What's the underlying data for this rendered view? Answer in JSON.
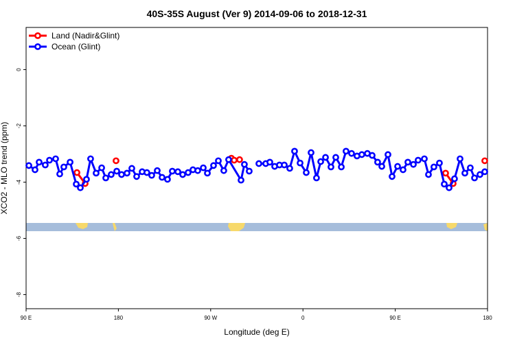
{
  "chart_data": {
    "type": "line",
    "title": "40S-35S August (Ver 9)   2014-09-06 to 2018-12-31",
    "x_label": "Longitude (deg E)",
    "y_label": "XCO2 - MLO trend (ppm)",
    "xlim": [
      90,
      540
    ],
    "ylim": [
      -8.5,
      1.5
    ],
    "xticks": [
      {
        "value": 90,
        "label": "90 E"
      },
      {
        "value": 180,
        "label": "180"
      },
      {
        "value": 270,
        "label": "90 W"
      },
      {
        "value": 360,
        "label": "0"
      },
      {
        "value": 450,
        "label": "90 E"
      },
      {
        "value": 540,
        "label": "180"
      }
    ],
    "yticks": [
      0,
      -2,
      -4,
      -6,
      -8
    ],
    "legend": "topleft",
    "series": [
      {
        "name": "Land (Nadir&Glint)",
        "color": "#ff0000",
        "x": [
          139.6,
          147.6,
          null,
          177.7,
          null,
          290.2,
          292.9,
          298.2,
          null,
          499.1,
          506.5,
          null,
          537.3
        ],
        "values": [
          -3.66,
          -4.05,
          null,
          -3.24,
          null,
          -3.15,
          -3.22,
          -3.2,
          null,
          -3.68,
          -4.05,
          null,
          -3.24
        ]
      },
      {
        "name": "Ocean (Glint)",
        "color": "#0000ff",
        "x": [
          92.7,
          98.7,
          102.7,
          108.7,
          112.8,
          118.8,
          122.8,
          126.8,
          132.9,
          138.9,
          142.9,
          148.9,
          152.9,
          158.3,
          163.7,
          167.7,
          173.0,
          178.4,
          183.1,
          188.4,
          193.1,
          197.8,
          203.2,
          207.8,
          212.5,
          217.9,
          222.6,
          227.9,
          232.6,
          238.0,
          242.7,
          248.0,
          252.7,
          257.4,
          262.8,
          266.8,
          272.8,
          277.5,
          282.8,
          287.5,
          299.6,
          302.9,
          307.6,
          null,
          317.0,
          323.7,
          327.7,
          332.4,
          337.1,
          341.8,
          347.1,
          351.8,
          357.2,
          363.2,
          367.9,
          373.2,
          377.3,
          382.0,
          387.3,
          392.0,
          397.4,
          402.0,
          407.4,
          412.7,
          417.4,
          422.8,
          427.5,
          432.8,
          436.9,
          442.9,
          446.9,
          452.3,
          457.6,
          462.3,
          467.7,
          472.3,
          478.4,
          482.4,
          487.7,
          493.1,
          497.8,
          502.5,
          507.8,
          513.2,
          517.9,
          523.2,
          527.3,
          532.6,
          537.3
        ],
        "values": [
          -3.41,
          -3.56,
          -3.29,
          -3.39,
          -3.22,
          -3.17,
          -3.71,
          -3.46,
          -3.29,
          -4.07,
          -4.2,
          -3.9,
          -3.17,
          -3.68,
          -3.49,
          -3.85,
          -3.73,
          -3.61,
          -3.73,
          -3.68,
          -3.51,
          -3.8,
          -3.63,
          -3.66,
          -3.76,
          -3.59,
          -3.83,
          -3.9,
          -3.61,
          -3.63,
          -3.73,
          -3.66,
          -3.56,
          -3.59,
          -3.49,
          -3.68,
          -3.41,
          -3.24,
          -3.59,
          -3.2,
          -3.93,
          -3.37,
          -3.61,
          null,
          -3.34,
          -3.34,
          -3.29,
          -3.44,
          -3.39,
          -3.39,
          -3.51,
          -2.9,
          -3.32,
          -3.66,
          -2.95,
          -3.85,
          -3.27,
          -3.12,
          -3.46,
          -3.12,
          -3.46,
          -2.9,
          -2.98,
          -3.07,
          -3.02,
          -2.98,
          -3.05,
          -3.29,
          -3.44,
          -3.02,
          -3.8,
          -3.44,
          -3.56,
          -3.29,
          -3.37,
          -3.22,
          -3.17,
          -3.73,
          -3.46,
          -3.32,
          -4.07,
          -4.2,
          -3.88,
          -3.17,
          -3.68,
          -3.49,
          -3.85,
          -3.73,
          -3.63
        ]
      }
    ]
  }
}
